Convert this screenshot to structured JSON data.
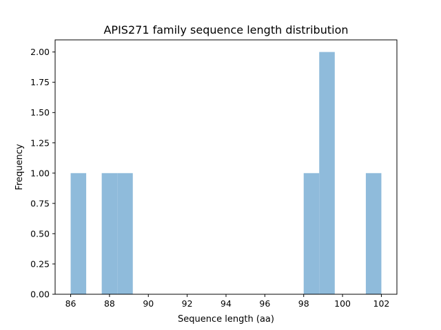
{
  "chart_data": {
    "type": "bar",
    "title": "APIS271 family sequence length distribution",
    "xlabel": "Sequence length (aa)",
    "ylabel": "Frequency",
    "xlim": [
      85.2,
      102.8
    ],
    "ylim": [
      0,
      2.1
    ],
    "x_ticks": [
      "86",
      "88",
      "90",
      "92",
      "94",
      "96",
      "98",
      "100",
      "102"
    ],
    "y_ticks": [
      "0.00",
      "0.25",
      "0.50",
      "0.75",
      "1.00",
      "1.25",
      "1.50",
      "1.75",
      "2.00"
    ],
    "bin_width": 0.8,
    "bins": [
      {
        "start": 86.0,
        "end": 86.8,
        "count": 1
      },
      {
        "start": 87.6,
        "end": 88.4,
        "count": 1
      },
      {
        "start": 88.4,
        "end": 89.2,
        "count": 1
      },
      {
        "start": 98.0,
        "end": 98.8,
        "count": 1
      },
      {
        "start": 98.8,
        "end": 99.6,
        "count": 2
      },
      {
        "start": 101.2,
        "end": 102.0,
        "count": 1
      }
    ],
    "bar_color": "#8fbbdb",
    "grid": false,
    "legend": "none"
  }
}
